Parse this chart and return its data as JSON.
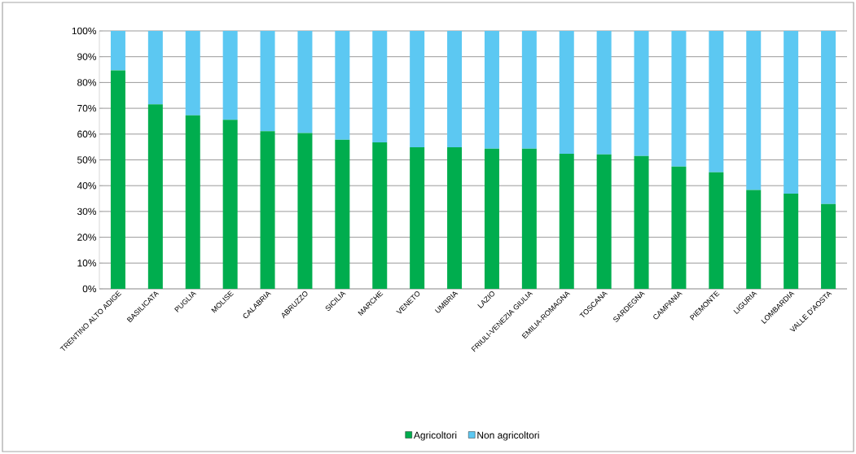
{
  "chart_data": {
    "type": "bar",
    "stacked": true,
    "categories": [
      "TRENTINO ALTO ADIGE",
      "BASILICATA",
      "PUGLIA",
      "MOLISE",
      "CALABRIA",
      "ABRUZZO",
      "SICILIA",
      "MARCHE",
      "VENETO",
      "UMBRIA",
      "LAZIO",
      "FRIULI-VENEZIA GIULIA",
      "EMILIA-ROMAGNA",
      "TOSCANA",
      "SARDEGNA",
      "CAMPANIA",
      "PIEMONTE",
      "LIGURIA",
      "LOMBARDIA",
      "VALLE D'AOSTA"
    ],
    "series": [
      {
        "name": "Agricoltori",
        "color": "#00ad4e",
        "values": [
          84.7,
          71.5,
          67.3,
          65.5,
          61.1,
          60.4,
          57.8,
          56.8,
          54.9,
          54.9,
          54.3,
          54.3,
          52.4,
          52.1,
          51.5,
          47.4,
          45.2,
          38.3,
          36.9,
          32.9
        ]
      },
      {
        "name": "Non agricoltori",
        "color": "#5cc8f2",
        "values": [
          15.3,
          28.5,
          32.7,
          34.5,
          38.9,
          39.6,
          42.2,
          43.2,
          45.1,
          45.1,
          45.7,
          45.7,
          47.6,
          47.9,
          48.5,
          52.6,
          54.8,
          61.7,
          63.1,
          67.1
        ]
      }
    ],
    "ylim": [
      0,
      100
    ],
    "yticks": [
      {
        "value": 0,
        "label": "0%"
      },
      {
        "value": 10,
        "label": "10%"
      },
      {
        "value": 20,
        "label": "20%"
      },
      {
        "value": 30,
        "label": "30%"
      },
      {
        "value": 40,
        "label": "40%"
      },
      {
        "value": 50,
        "label": "50%"
      },
      {
        "value": 60,
        "label": "60%"
      },
      {
        "value": 70,
        "label": "70%"
      },
      {
        "value": 80,
        "label": "80%"
      },
      {
        "value": 90,
        "label": "90%"
      },
      {
        "value": 100,
        "label": "100%"
      }
    ],
    "grid": "y",
    "legend": "bottom"
  }
}
